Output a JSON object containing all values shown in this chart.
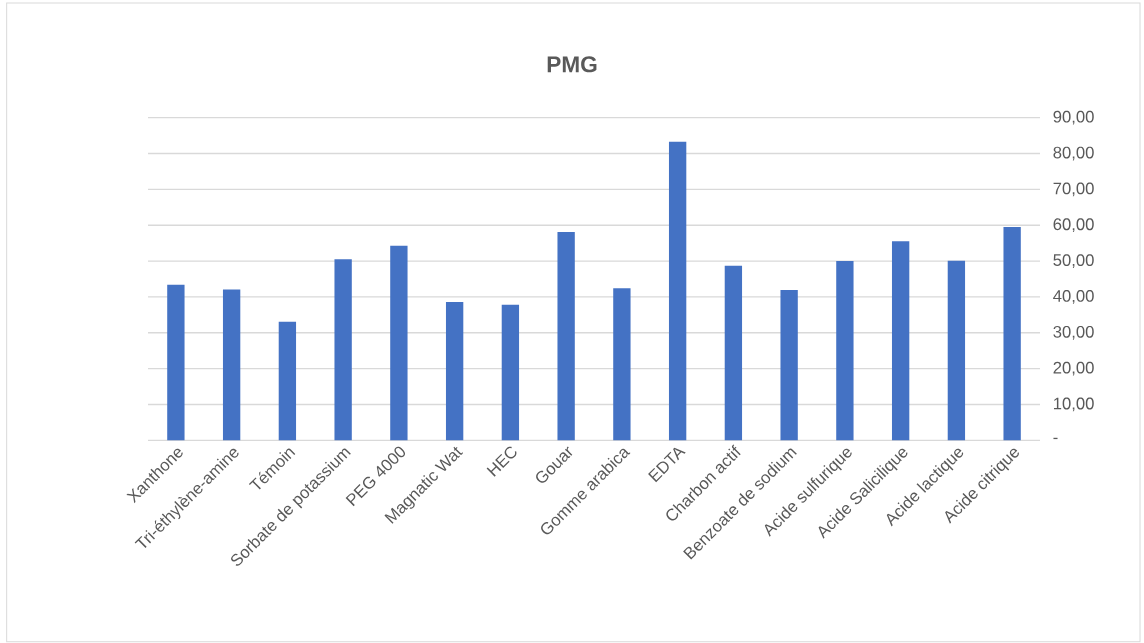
{
  "chart_data": {
    "type": "bar",
    "title": "PMG",
    "categories": [
      "Xanthone",
      "Tri-éthylène-amine",
      "Témoin",
      "Sorbate de potassium",
      "PEG 4000",
      "Magnatic Wat",
      "HEC",
      "Gouar",
      "Gomme arabica",
      "EDTA",
      "Charbon actif",
      "Benzoate de sodium",
      "Acide sulfurique",
      "Acide Salicilique",
      "Acide lactique",
      "Acide citrique"
    ],
    "values": [
      43.4,
      42.1,
      33.1,
      50.5,
      54.3,
      38.6,
      37.8,
      58.1,
      42.4,
      83.3,
      48.7,
      41.9,
      50.0,
      55.5,
      50.1,
      59.5
    ],
    "color": "#4472c4",
    "ylim": [
      0,
      90
    ],
    "yticks": [
      {
        "value": 0,
        "label": "-"
      },
      {
        "value": 10,
        "label": "10,00"
      },
      {
        "value": 20,
        "label": "20,00"
      },
      {
        "value": 30,
        "label": "30,00"
      },
      {
        "value": 40,
        "label": "40,00"
      },
      {
        "value": 50,
        "label": "50,00"
      },
      {
        "value": 60,
        "label": "60,00"
      },
      {
        "value": 70,
        "label": "70,00"
      },
      {
        "value": 80,
        "label": "80,00"
      },
      {
        "value": 90,
        "label": "90,00"
      }
    ],
    "grid": "y"
  }
}
